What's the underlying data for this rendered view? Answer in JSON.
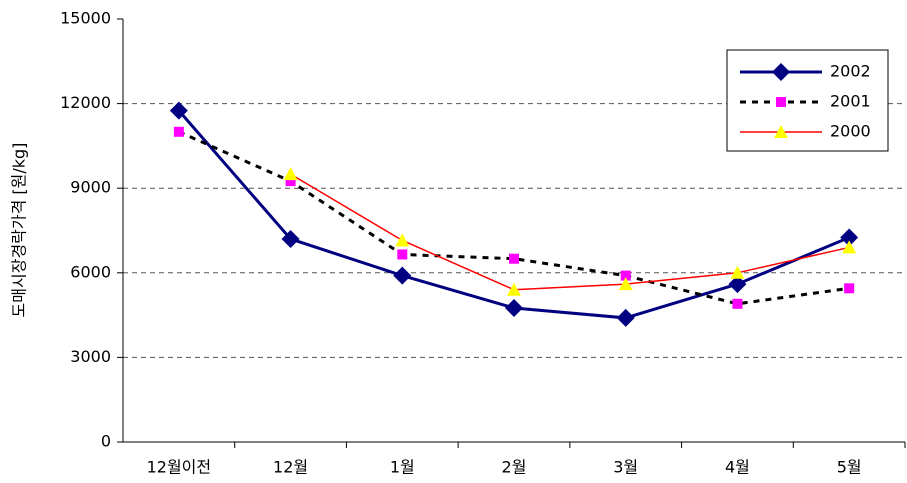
{
  "chart_data": {
    "type": "line",
    "y_label": "도매시장경락가격 [원/kg]",
    "categories": [
      "12월이전",
      "12월",
      "1월",
      "2월",
      "3월",
      "4월",
      "5월"
    ],
    "series": [
      {
        "name": "2002",
        "color": "#000080",
        "marker_color": "#000080",
        "marker": "diamond",
        "dash": "solid",
        "width": 3,
        "values": [
          11750,
          7200,
          5900,
          4750,
          4400,
          5600,
          7250
        ]
      },
      {
        "name": "2001",
        "color": "#000000",
        "marker_color": "#FF00FF",
        "marker": "square",
        "dash": "dotted",
        "width": 3,
        "values": [
          11000,
          9250,
          6650,
          6500,
          5900,
          4900,
          5450
        ]
      },
      {
        "name": "2000",
        "color": "#FF0000",
        "marker_color": "#FFFF00",
        "marker": "triangle",
        "dash": "solid",
        "width": 1.5,
        "values": [
          null,
          9500,
          7150,
          5400,
          5600,
          6000,
          6900
        ]
      }
    ],
    "ylim": [
      0,
      15000
    ],
    "yticks": [
      0,
      3000,
      6000,
      9000,
      12000,
      15000
    ],
    "grid": true,
    "legend": "upper right"
  }
}
